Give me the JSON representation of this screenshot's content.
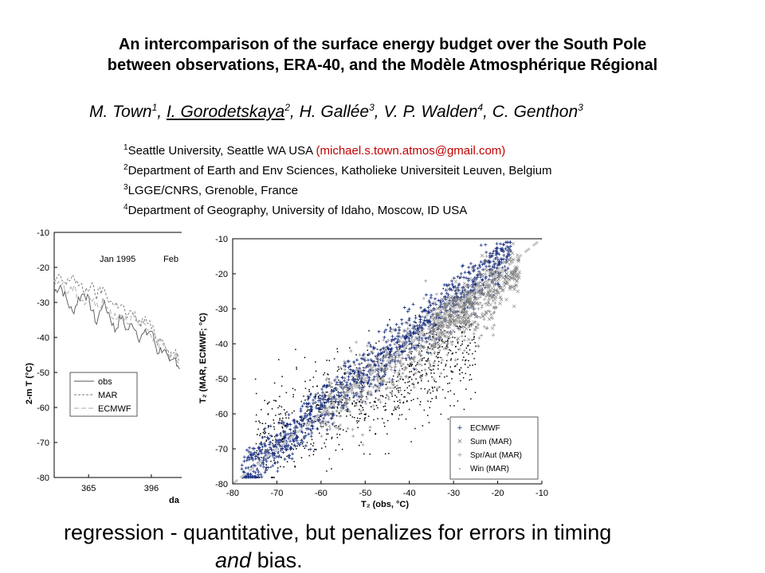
{
  "slide": {
    "title_line1": "An intercomparison of the surface energy budget over the South Pole",
    "title_line2": "between observations, ERA-40, and the Modèle Atmosphérique Régional",
    "authors": [
      {
        "name": "M. Town",
        "sup": "1",
        "underline": false,
        "sep": ", "
      },
      {
        "name": "I. Gorodetskaya",
        "sup": "2",
        "underline": true,
        "sep": ", "
      },
      {
        "name": "H. Gallée",
        "sup": "3",
        "underline": false,
        "sep": ", "
      },
      {
        "name": "V. P. Walden",
        "sup": "4",
        "underline": false,
        "sep": ", "
      },
      {
        "name": "C. Genthon",
        "sup": "3",
        "underline": false,
        "sep": ""
      }
    ],
    "affiliations": [
      {
        "sup": "1",
        "text": "Seattle University, Seattle WA USA ",
        "email": "(michael.s.town.atmos@gmail.com)"
      },
      {
        "sup": "2",
        "text": "Department of Earth and Env Sciences, Katholieke Universiteit Leuven, Belgium",
        "email": ""
      },
      {
        "sup": "3",
        "text": "LGGE/CNRS, Grenoble, France",
        "email": ""
      },
      {
        "sup": "4",
        "text": "Department of Geography, University of Idaho, Moscow, ID USA",
        "email": ""
      }
    ],
    "bottom_line1": "regression - quantitative, but penalizes for errors in timing",
    "bottom_line2_italic": "and",
    "bottom_line2_rest": " bias."
  },
  "chart_data": [
    {
      "type": "line",
      "ylabel": "2-m T (°C)",
      "xlabel": "da",
      "ylim": [
        -80,
        -10
      ],
      "y_ticks": [
        -10,
        -20,
        -30,
        -40,
        -50,
        -60,
        -70,
        -80
      ],
      "x_ticks": [
        365,
        396
      ],
      "xlim": [
        348,
        411
      ],
      "annotations": [
        "Jan 1995",
        "Feb"
      ],
      "series": [
        {
          "name": "obs",
          "color": "#555555",
          "dash": "none",
          "x": [
            348,
            351,
            354,
            357,
            360,
            363,
            366,
            369,
            372,
            375,
            378,
            381,
            384,
            387,
            390,
            393,
            396,
            399,
            402,
            405,
            408,
            410
          ],
          "y": [
            -27,
            -25,
            -29,
            -33,
            -29,
            -27,
            -31,
            -36,
            -30,
            -33,
            -38,
            -34,
            -38,
            -36,
            -40,
            -39,
            -38,
            -44,
            -43,
            -48,
            -46,
            -49
          ]
        },
        {
          "name": "MAR",
          "color": "#777777",
          "dash": "3,2",
          "x": [
            348,
            351,
            354,
            357,
            360,
            363,
            366,
            369,
            372,
            375,
            378,
            381,
            384,
            387,
            390,
            393,
            396,
            399,
            402,
            405,
            408,
            410
          ],
          "y": [
            -24,
            -23,
            -25,
            -22,
            -25,
            -27,
            -25,
            -28,
            -26,
            -29,
            -31,
            -30,
            -34,
            -33,
            -36,
            -35,
            -37,
            -41,
            -40,
            -45,
            -44,
            -47
          ]
        },
        {
          "name": "ECMWF",
          "color": "#aaaaaa",
          "dash": "6,3",
          "x": [
            348,
            351,
            354,
            357,
            360,
            363,
            366,
            369,
            372,
            375,
            378,
            381,
            384,
            387,
            390,
            393,
            396,
            399,
            402,
            405,
            408,
            410
          ],
          "y": [
            -25,
            -24,
            -27,
            -26,
            -28,
            -30,
            -29,
            -31,
            -30,
            -32,
            -34,
            -33,
            -35,
            -34,
            -37,
            -37,
            -39,
            -42,
            -41,
            -45,
            -45,
            -48
          ]
        }
      ],
      "legend": [
        "obs",
        "MAR",
        "ECMWF"
      ],
      "legend_position": "lower-left"
    },
    {
      "type": "scatter",
      "xlabel": "T₂ (obs, °C)",
      "ylabel": "T₂ (MAR, ECMWF; °C)",
      "xlim": [
        -80,
        -10
      ],
      "ylim": [
        -80,
        -10
      ],
      "x_ticks": [
        -80,
        -70,
        -60,
        -50,
        -40,
        -30,
        -20,
        -10
      ],
      "y_ticks": [
        -10,
        -20,
        -30,
        -40,
        -50,
        -60,
        -70,
        -80
      ],
      "reference_line": {
        "from": [
          -80,
          -80
        ],
        "to": [
          -10,
          -10
        ],
        "color": "#c8c8c8"
      },
      "series": [
        {
          "name": "Win (MAR)",
          "marker": "·",
          "color": "#000000",
          "cloud": {
            "x_range": [
              -75,
              -25
            ],
            "slope": 0.6,
            "intercept": -24,
            "spread": 7,
            "count": 900
          }
        },
        {
          "name": "ECMWF",
          "marker": "+",
          "color": "#1a2f80",
          "cloud": {
            "x_range": [
              -78,
              -17
            ],
            "slope": 1.05,
            "intercept": 4,
            "spread": 3.5,
            "count": 1100
          }
        },
        {
          "name": "Sum (MAR)",
          "marker": "×",
          "color": "#7a7a7a",
          "cloud": {
            "x_range": [
              -35,
              -15
            ],
            "slope": 0.8,
            "intercept": -7,
            "spread": 3.5,
            "count": 400
          }
        },
        {
          "name": "Spr/Aut (MAR)",
          "marker": "+",
          "color": "#9a9a9a",
          "cloud": {
            "x_range": [
              -60,
              -20
            ],
            "slope": 0.85,
            "intercept": -9,
            "spread": 5,
            "count": 500
          }
        }
      ],
      "legend": [
        "ECMWF",
        "Sum (MAR)",
        "Spr/Aut (MAR)",
        "Win (MAR)"
      ],
      "legend_position": "lower-right",
      "colors": {
        "ecmwf": "#1a2f80",
        "sum": "#7a7a7a",
        "spr_aut": "#9a9a9a",
        "win": "#000000"
      }
    }
  ]
}
